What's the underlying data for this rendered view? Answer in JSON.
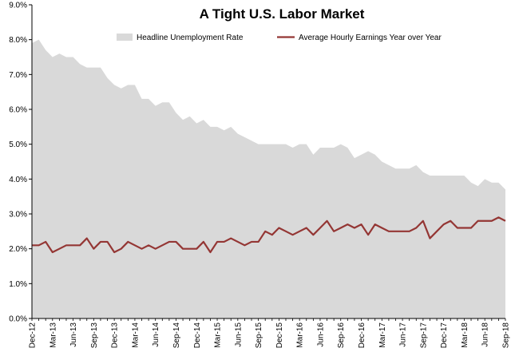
{
  "chart_data": {
    "type": "area",
    "title": "A Tight U.S. Labor Market",
    "xlabel": "",
    "ylabel": "",
    "ylim": [
      0,
      9
    ],
    "yticks": [
      "0.0%",
      "1.0%",
      "2.0%",
      "3.0%",
      "4.0%",
      "5.0%",
      "6.0%",
      "7.0%",
      "8.0%",
      "9.0%"
    ],
    "xtick_labels": [
      "Dec-12",
      "Mar-13",
      "Jun-13",
      "Sep-13",
      "Dec-13",
      "Mar-14",
      "Jun-14",
      "Sep-14",
      "Dec-14",
      "Mar-15",
      "Jun-15",
      "Sep-15",
      "Dec-15",
      "Mar-16",
      "Jun-16",
      "Sep-16",
      "Dec-16",
      "Mar-17",
      "Jun-17",
      "Sep-17",
      "Dec-17",
      "Mar-18",
      "Jun-18",
      "Sep-18"
    ],
    "grid": false,
    "legend_position": "top",
    "colors": {
      "area": "#d9d9d9",
      "line": "#943634"
    },
    "series": [
      {
        "name": "Headline Unemployment Rate",
        "type": "area",
        "values": [
          7.9,
          8.0,
          7.7,
          7.5,
          7.6,
          7.5,
          7.5,
          7.3,
          7.2,
          7.2,
          7.2,
          6.9,
          6.7,
          6.6,
          6.7,
          6.7,
          6.3,
          6.3,
          6.1,
          6.2,
          6.2,
          5.9,
          5.7,
          5.8,
          5.6,
          5.7,
          5.5,
          5.5,
          5.4,
          5.5,
          5.3,
          5.2,
          5.1,
          5.0,
          5.0,
          5.0,
          5.0,
          5.0,
          4.9,
          5.0,
          5.0,
          4.7,
          4.9,
          4.9,
          4.9,
          5.0,
          4.9,
          4.6,
          4.7,
          4.8,
          4.7,
          4.5,
          4.4,
          4.3,
          4.3,
          4.3,
          4.4,
          4.2,
          4.1,
          4.1,
          4.1,
          4.1,
          4.1,
          4.1,
          3.9,
          3.8,
          4.0,
          3.9,
          3.9,
          3.7
        ]
      },
      {
        "name": "Average Hourly Earnings Year over Year",
        "type": "line",
        "values": [
          2.1,
          2.1,
          2.2,
          1.9,
          2.0,
          2.1,
          2.1,
          2.1,
          2.3,
          2.0,
          2.2,
          2.2,
          1.9,
          2.0,
          2.2,
          2.1,
          2.0,
          2.1,
          2.0,
          2.1,
          2.2,
          2.2,
          2.0,
          2.0,
          2.0,
          2.2,
          1.9,
          2.2,
          2.2,
          2.3,
          2.2,
          2.1,
          2.2,
          2.2,
          2.5,
          2.4,
          2.6,
          2.5,
          2.4,
          2.5,
          2.6,
          2.4,
          2.6,
          2.8,
          2.5,
          2.6,
          2.7,
          2.6,
          2.7,
          2.4,
          2.7,
          2.6,
          2.5,
          2.5,
          2.5,
          2.5,
          2.6,
          2.8,
          2.3,
          2.5,
          2.7,
          2.8,
          2.6,
          2.6,
          2.6,
          2.8,
          2.8,
          2.8,
          2.9,
          2.8
        ]
      }
    ]
  }
}
